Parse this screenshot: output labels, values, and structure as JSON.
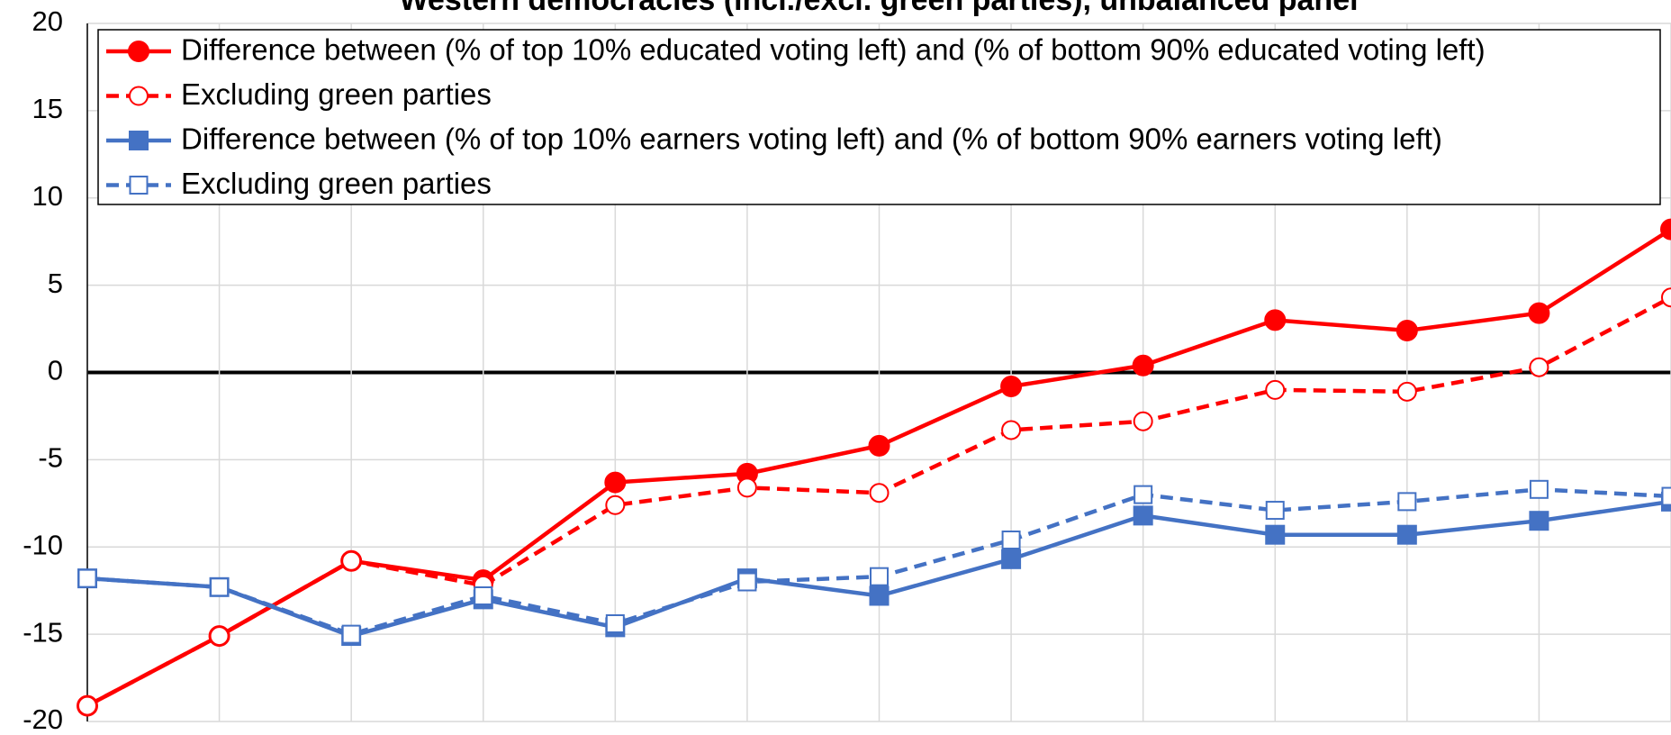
{
  "chart_data": {
    "type": "line",
    "title": "Western democracies (incl./excl. green parties), unbalanced panel",
    "categories": [
      null,
      null,
      null,
      null,
      null,
      null,
      null,
      null,
      null,
      null,
      null,
      null,
      null
    ],
    "series": [
      {
        "name": "Difference between (% of top 10% educated voting left) and (% of bottom 90% educated voting left)",
        "color": "#ff0000",
        "dashed": false,
        "marker": "circle",
        "filled": true,
        "values": [
          -19.1,
          -15.1,
          -10.8,
          -11.9,
          -6.3,
          -5.8,
          -4.2,
          -0.8,
          0.4,
          3.0,
          2.4,
          3.4,
          8.2
        ]
      },
      {
        "name": "Excluding green parties",
        "color": "#ff0000",
        "dashed": true,
        "marker": "circle",
        "filled": false,
        "values": [
          -19.1,
          -15.1,
          -10.8,
          -12.2,
          -7.6,
          -6.6,
          -6.9,
          -3.3,
          -2.8,
          -1.0,
          -1.1,
          0.3,
          4.3
        ]
      },
      {
        "name": "Difference between (% of top 10% earners voting left) and (% of bottom 90% earners voting left)",
        "color": "#4472c4",
        "dashed": false,
        "marker": "square",
        "filled": true,
        "values": [
          -11.8,
          -12.3,
          -15.1,
          -13.0,
          -14.6,
          -11.8,
          -12.8,
          -10.7,
          -8.2,
          -9.3,
          -9.3,
          -8.5,
          -7.4
        ]
      },
      {
        "name": "Excluding green parties",
        "color": "#4472c4",
        "dashed": true,
        "marker": "square",
        "filled": false,
        "values": [
          -11.8,
          -12.3,
          -15.0,
          -12.8,
          -14.4,
          -12.0,
          -11.7,
          -9.6,
          -7.0,
          -7.9,
          -7.4,
          -6.7,
          -7.1
        ]
      }
    ],
    "ylim": [
      -20,
      20
    ],
    "yticks": [
      -20,
      -15,
      -10,
      -5,
      0,
      5,
      10,
      15,
      20
    ],
    "grid": true
  }
}
